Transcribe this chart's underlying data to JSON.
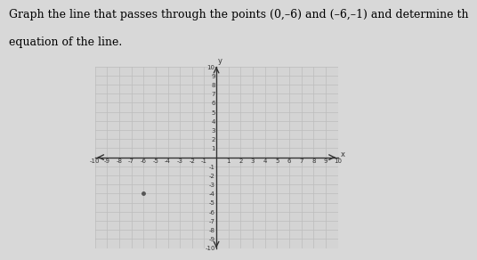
{
  "title_line1": "Graph the line that passes through the points (0,–6) and (–6,–1) and determine th",
  "title_line2": "equation of the line.",
  "point1": [
    0,
    -6
  ],
  "point2": [
    -6,
    -1
  ],
  "xlim": [
    -10,
    10
  ],
  "ylim": [
    -10,
    10
  ],
  "bg_color": "#d8d8d8",
  "plot_bg_color": "#d4d4d4",
  "grid_color": "#bcbcbc",
  "axis_color": "#333333",
  "line_color": "#555555",
  "dot_color": "#555555",
  "title_fontsize": 9,
  "tick_fontsize": 5
}
